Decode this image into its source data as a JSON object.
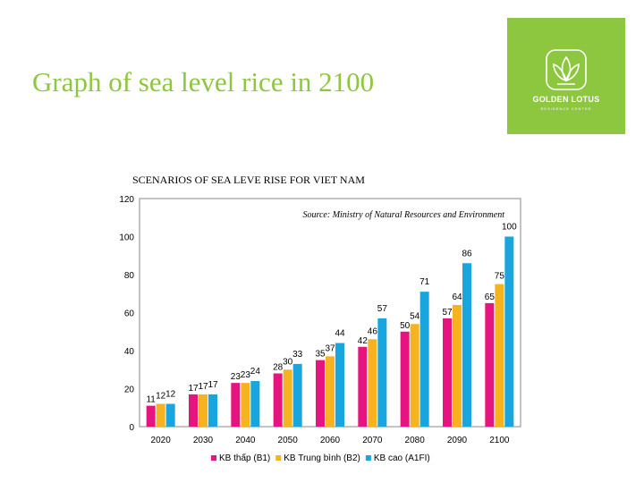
{
  "slide": {
    "title": "Graph of sea level rice in 2100"
  },
  "logo": {
    "name": "GOLDEN LOTUS",
    "tagline": "RESIDENCE CENTER"
  },
  "colors": {
    "accent": "#8dc63f",
    "b1": "#e6147e",
    "b2": "#f6b21f",
    "a1fi": "#19a6de"
  },
  "chart_data": {
    "type": "bar",
    "title": "SCENARIOS OF SEA LEVE RISE FOR VIET NAM",
    "annotation": "Source: Ministry of Natural Resources and Environment",
    "categories": [
      "2020",
      "2030",
      "2040",
      "2050",
      "2060",
      "2070",
      "2080",
      "2090",
      "2100"
    ],
    "series": [
      {
        "name": "KB thấp (B1)",
        "color": "#e6147e",
        "values": [
          11,
          17,
          23,
          28,
          35,
          42,
          50,
          57,
          65
        ],
        "labels": [
          "11",
          "17",
          "23",
          "28",
          "35",
          "42",
          "50",
          "57",
          "65"
        ]
      },
      {
        "name": "KB Trung bình (B2)",
        "color": "#f6b21f",
        "values": [
          12,
          17,
          23,
          30,
          37,
          46,
          54,
          64,
          75
        ],
        "labels": [
          "12",
          "17",
          "23",
          "30",
          "37",
          "46",
          "54",
          "64",
          "75"
        ]
      },
      {
        "name": "KB cao (A1FI)",
        "color": "#19a6de",
        "values": [
          12,
          17,
          24,
          33,
          44,
          57,
          71,
          86,
          100
        ],
        "labels": [
          "12",
          "17",
          "24",
          "33",
          "44",
          "57",
          "71",
          "86",
          "100"
        ]
      }
    ],
    "y_ticks": [
      "0",
      "20",
      "40",
      "60",
      "80",
      "100",
      "120"
    ],
    "ylim": [
      0,
      120
    ],
    "legend_position": "bottom",
    "grid": false
  }
}
